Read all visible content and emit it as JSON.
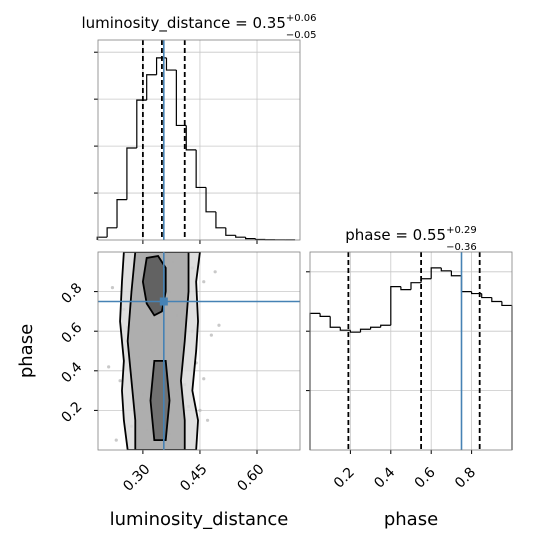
{
  "chart_data": [
    {
      "type": "histogram",
      "title": {
        "text": "luminosity_distance = 0.35",
        "sup": "+0.06",
        "sub": "−0.05"
      },
      "bins": [
        0.18,
        0.206,
        0.232,
        0.258,
        0.284,
        0.31,
        0.336,
        0.362,
        0.388,
        0.414,
        0.44,
        0.466,
        0.492,
        0.518,
        0.544,
        0.57,
        0.596,
        0.622,
        0.648,
        0.674,
        0.7
      ],
      "values": [
        30,
        130,
        430,
        980,
        1490,
        1760,
        1940,
        1810,
        1220,
        960,
        560,
        300,
        130,
        50,
        30,
        15,
        5,
        3,
        2,
        1
      ],
      "color": "#000000",
      "xlim": [
        0.182,
        0.713
      ],
      "xticks": [
        0.3,
        0.45,
        0.6
      ],
      "ylim": [
        0,
        2130
      ],
      "yticks": [
        500,
        1000,
        1500,
        2000
      ],
      "quantiles": [
        0.3,
        0.35,
        0.41
      ],
      "truth": 0.355,
      "truth_color": "#4682b4",
      "grid": true
    },
    {
      "type": "scatter",
      "xlabel": "luminosity_distance",
      "ylabel": "phase",
      "x": [
        0.22,
        0.24,
        0.26,
        0.27,
        0.28,
        0.29,
        0.3,
        0.31,
        0.32,
        0.33,
        0.34,
        0.35,
        0.36,
        0.37,
        0.38,
        0.39,
        0.4,
        0.41,
        0.42,
        0.43,
        0.44,
        0.46,
        0.47,
        0.48,
        0.23,
        0.25,
        0.27,
        0.29,
        0.31,
        0.33,
        0.35,
        0.37,
        0.39,
        0.41,
        0.43,
        0.45,
        0.5,
        0.21,
        0.46,
        0.49
      ],
      "y": [
        0.82,
        0.35,
        0.62,
        0.12,
        0.91,
        0.47,
        0.28,
        0.73,
        0.55,
        0.18,
        0.88,
        0.4,
        0.66,
        0.08,
        0.95,
        0.3,
        0.52,
        0.77,
        0.22,
        0.6,
        0.44,
        0.85,
        0.15,
        0.58,
        0.05,
        0.71,
        0.38,
        0.97,
        0.1,
        0.5,
        0.25,
        0.8,
        0.68,
        0.33,
        0.92,
        0.2,
        0.63,
        0.42,
        0.36,
        0.9
      ],
      "color": "#bbbbbb",
      "contours": [
        {
          "x": [
            0.25,
            0.245,
            0.24,
            0.25,
            0.245,
            0.25,
            0.26,
            0.44,
            0.445,
            0.43,
            0.44,
            0.445,
            0.44,
            0.45
          ],
          "y": [
            1.0,
            0.85,
            0.65,
            0.45,
            0.3,
            0.15,
            0.0,
            0.0,
            0.15,
            0.3,
            0.5,
            0.65,
            0.85,
            1.0
          ],
          "color": "#d9d9d9"
        },
        {
          "x": [
            0.28,
            0.27,
            0.26,
            0.27,
            0.28,
            0.28,
            0.41,
            0.41,
            0.4,
            0.41,
            0.42,
            0.42
          ],
          "y": [
            1.0,
            0.8,
            0.55,
            0.35,
            0.15,
            0.0,
            0.0,
            0.15,
            0.35,
            0.55,
            0.8,
            1.0
          ],
          "color": "#a6a6a6"
        },
        {
          "x": [
            0.31,
            0.3,
            0.31,
            0.33,
            0.35,
            0.36,
            0.36,
            0.34
          ],
          "y": [
            0.97,
            0.85,
            0.74,
            0.68,
            0.7,
            0.8,
            0.92,
            0.98
          ],
          "color": "#555555"
        },
        {
          "x": [
            0.33,
            0.32,
            0.33,
            0.36,
            0.37,
            0.36
          ],
          "y": [
            0.45,
            0.25,
            0.05,
            0.05,
            0.25,
            0.45
          ],
          "color": "#666666"
        }
      ],
      "xlim": [
        0.182,
        0.713
      ],
      "xticks": [
        {
          "value": 0.3,
          "label": "0.30"
        },
        {
          "value": 0.45,
          "label": "0.45"
        },
        {
          "value": 0.6,
          "label": "0.60"
        }
      ],
      "ylim": [
        0,
        1
      ],
      "yticks": [
        0.2,
        0.4,
        0.6,
        0.8
      ],
      "truth": [
        0.355,
        0.75
      ],
      "truth_color": "#4682b4",
      "grid": true
    },
    {
      "type": "histogram",
      "title": {
        "text": "phase = 0.55",
        "sup": "+0.29",
        "sub": "−0.36"
      },
      "xlabel": "phase",
      "bins": [
        0,
        0.05,
        0.1,
        0.15,
        0.2,
        0.25,
        0.3,
        0.35,
        0.4,
        0.45,
        0.5,
        0.55,
        0.6,
        0.65,
        0.7,
        0.75,
        0.8,
        0.85,
        0.9,
        0.95,
        1.0
      ],
      "values": [
        1380,
        1350,
        1240,
        1210,
        1190,
        1220,
        1240,
        1260,
        1650,
        1620,
        1690,
        1730,
        1840,
        1810,
        1760,
        1600,
        1580,
        1540,
        1500,
        1460
      ],
      "color": "#000000",
      "xlim": [
        0,
        1
      ],
      "xticks": [
        0.2,
        0.4,
        0.6,
        0.8
      ],
      "ylim": [
        0,
        2000
      ],
      "yticks": [
        600,
        1200,
        1800
      ],
      "quantiles": [
        0.19,
        0.55,
        0.84
      ],
      "truth": 0.75,
      "truth_color": "#4682b4",
      "grid": true
    }
  ]
}
